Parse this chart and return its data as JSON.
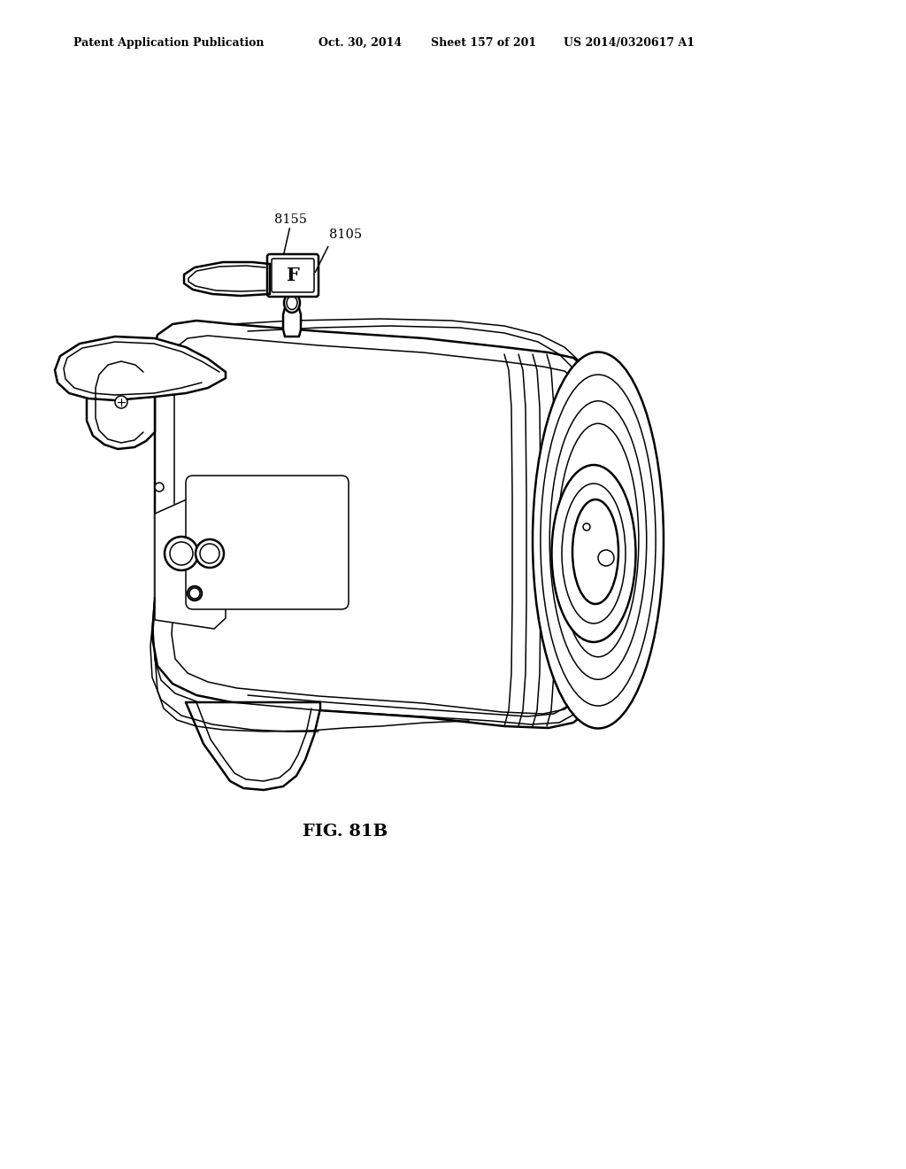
{
  "background_color": "#ffffff",
  "line_color": "#000000",
  "header_text": "Patent Application Publication",
  "header_date": "Oct. 30, 2014",
  "header_sheet": "Sheet 157 of 201",
  "header_patent": "US 2014/0320617 A1",
  "figure_label": "FIG. 81B",
  "label_8155": "8155",
  "label_8105": "8105",
  "label_F": "F",
  "fig_width": 10.24,
  "fig_height": 13.2,
  "dpi": 100
}
